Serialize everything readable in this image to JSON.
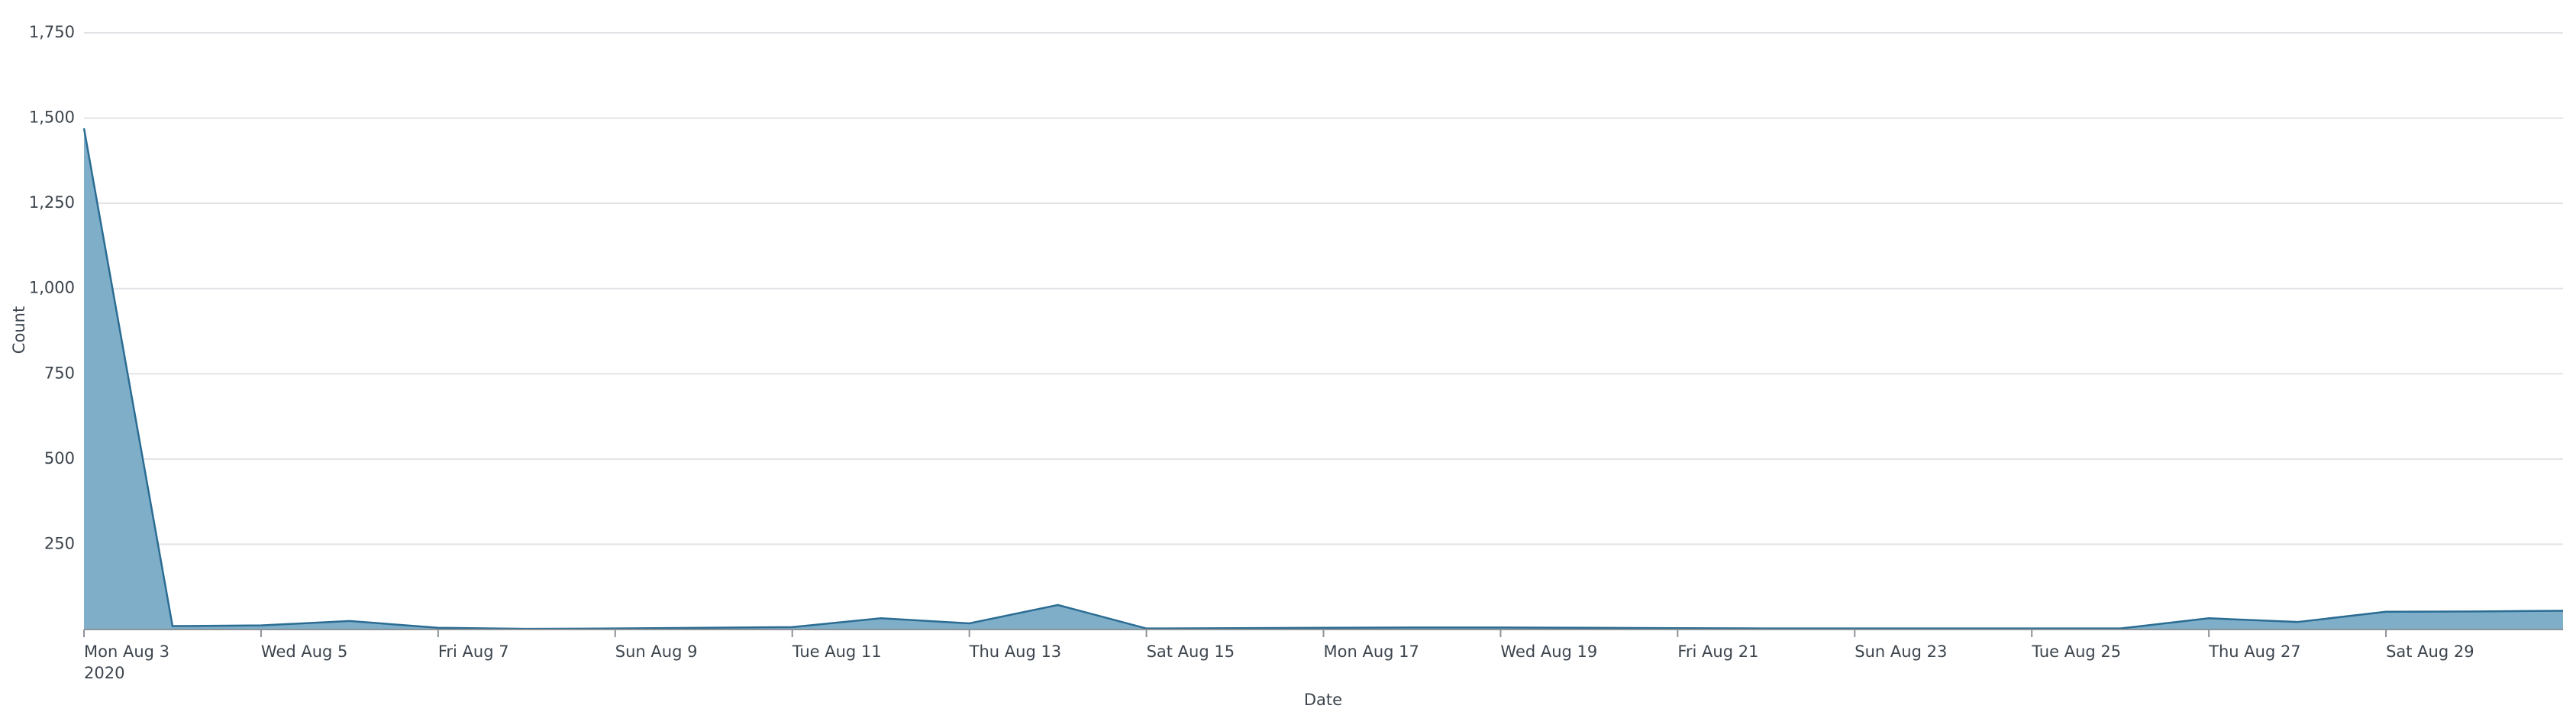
{
  "chart_data": {
    "type": "area",
    "x_label": "Date",
    "y_label": "Count",
    "categories": [
      "Mon Aug 3",
      null,
      "Wed Aug 5",
      null,
      "Fri Aug 7",
      null,
      "Sun Aug 9",
      null,
      "Tue Aug 11",
      null,
      "Thu Aug 13",
      null,
      "Sat Aug 15",
      null,
      "Mon Aug 17",
      null,
      "Wed Aug 19",
      null,
      "Fri Aug 21",
      null,
      "Sun Aug 23",
      null,
      "Tue Aug 25",
      null,
      "Thu Aug 27",
      null,
      "Sat Aug 29",
      null,
      null
    ],
    "year_label": "2020",
    "values": [
      1470,
      10,
      12,
      25,
      5,
      2,
      3,
      5,
      7,
      33,
      18,
      72,
      3,
      4,
      5,
      6,
      6,
      5,
      4,
      3,
      3,
      3,
      3,
      3,
      33,
      22,
      52,
      53,
      55
    ],
    "color": "#2b6c93",
    "fill_color": "#7eaec8",
    "ylim": [
      0,
      1750
    ],
    "yticks": [
      250,
      500,
      750,
      {
        "value": 1000,
        "label": "1,000"
      },
      {
        "value": 1250,
        "label": "1,250"
      },
      {
        "value": 1500,
        "label": "1,500"
      },
      {
        "value": 1750,
        "label": "1,750"
      }
    ],
    "grid": true
  }
}
